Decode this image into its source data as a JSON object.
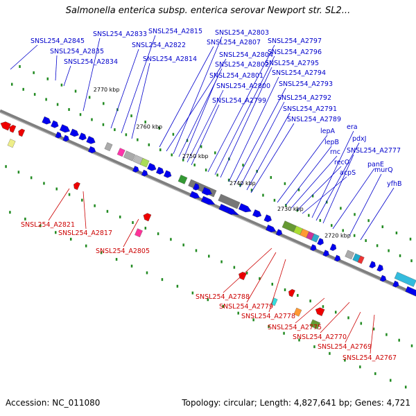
{
  "title": "Salmonella enterica subsp. enterica serovar Newport str. SL2...",
  "footer": {
    "accession": "Accession: NC_011080",
    "stats": "Topology: circular; Length: 4,827,641 bp; Genes: 4,721"
  },
  "colors": {
    "backbone": "#7f7f7f",
    "forward_label": "#0000cc",
    "reverse_label": "#cc0000",
    "forward_gene": "#0000ee",
    "reverse_gene": "#ee0000",
    "tick": "#228b22"
  },
  "scale_ticks": [
    "2770 kbp",
    "2760 kbp",
    "2750 kbp",
    "2740 kbp",
    "2730 kbp",
    "2720 kbp"
  ],
  "forward_labels": [
    "SNSL254_A2845",
    "SNSL254_A2835",
    "SNSL254_A2834",
    "SNSL254_A2833",
    "SNSL254_A2822",
    "SNSL254_A2815",
    "SNSL254_A2814",
    "SNSL254_A2807",
    "SNSL254_A2804",
    "SNSL254_A2803",
    "SNSL254_A2802",
    "SNSL254_A2801",
    "SNSL254_A2800",
    "SNSL254_A2799",
    "SNSL254_A2797",
    "SNSL254_A2796",
    "SNSL254_A2795",
    "SNSL254_A2794",
    "SNSL254_A2793",
    "SNSL254_A2792",
    "SNSL254_A2791",
    "SNSL254_A2789",
    "lepA",
    "lepB",
    "rnc",
    "recO",
    "acpS",
    "era",
    "pdxJ",
    "SNSL254_A2777",
    "panE",
    "murQ",
    "yfhB"
  ],
  "reverse_labels": [
    "SNSL254_A2821",
    "SNSL254_A2817",
    "SNSL254_A2805",
    "SNSL254_A2788",
    "SNSL254_A2779",
    "SNSL254_A2778",
    "SNSL254_A2775",
    "SNSL254_A2770",
    "SNSL254_A2769",
    "SNSL254_A2767"
  ]
}
